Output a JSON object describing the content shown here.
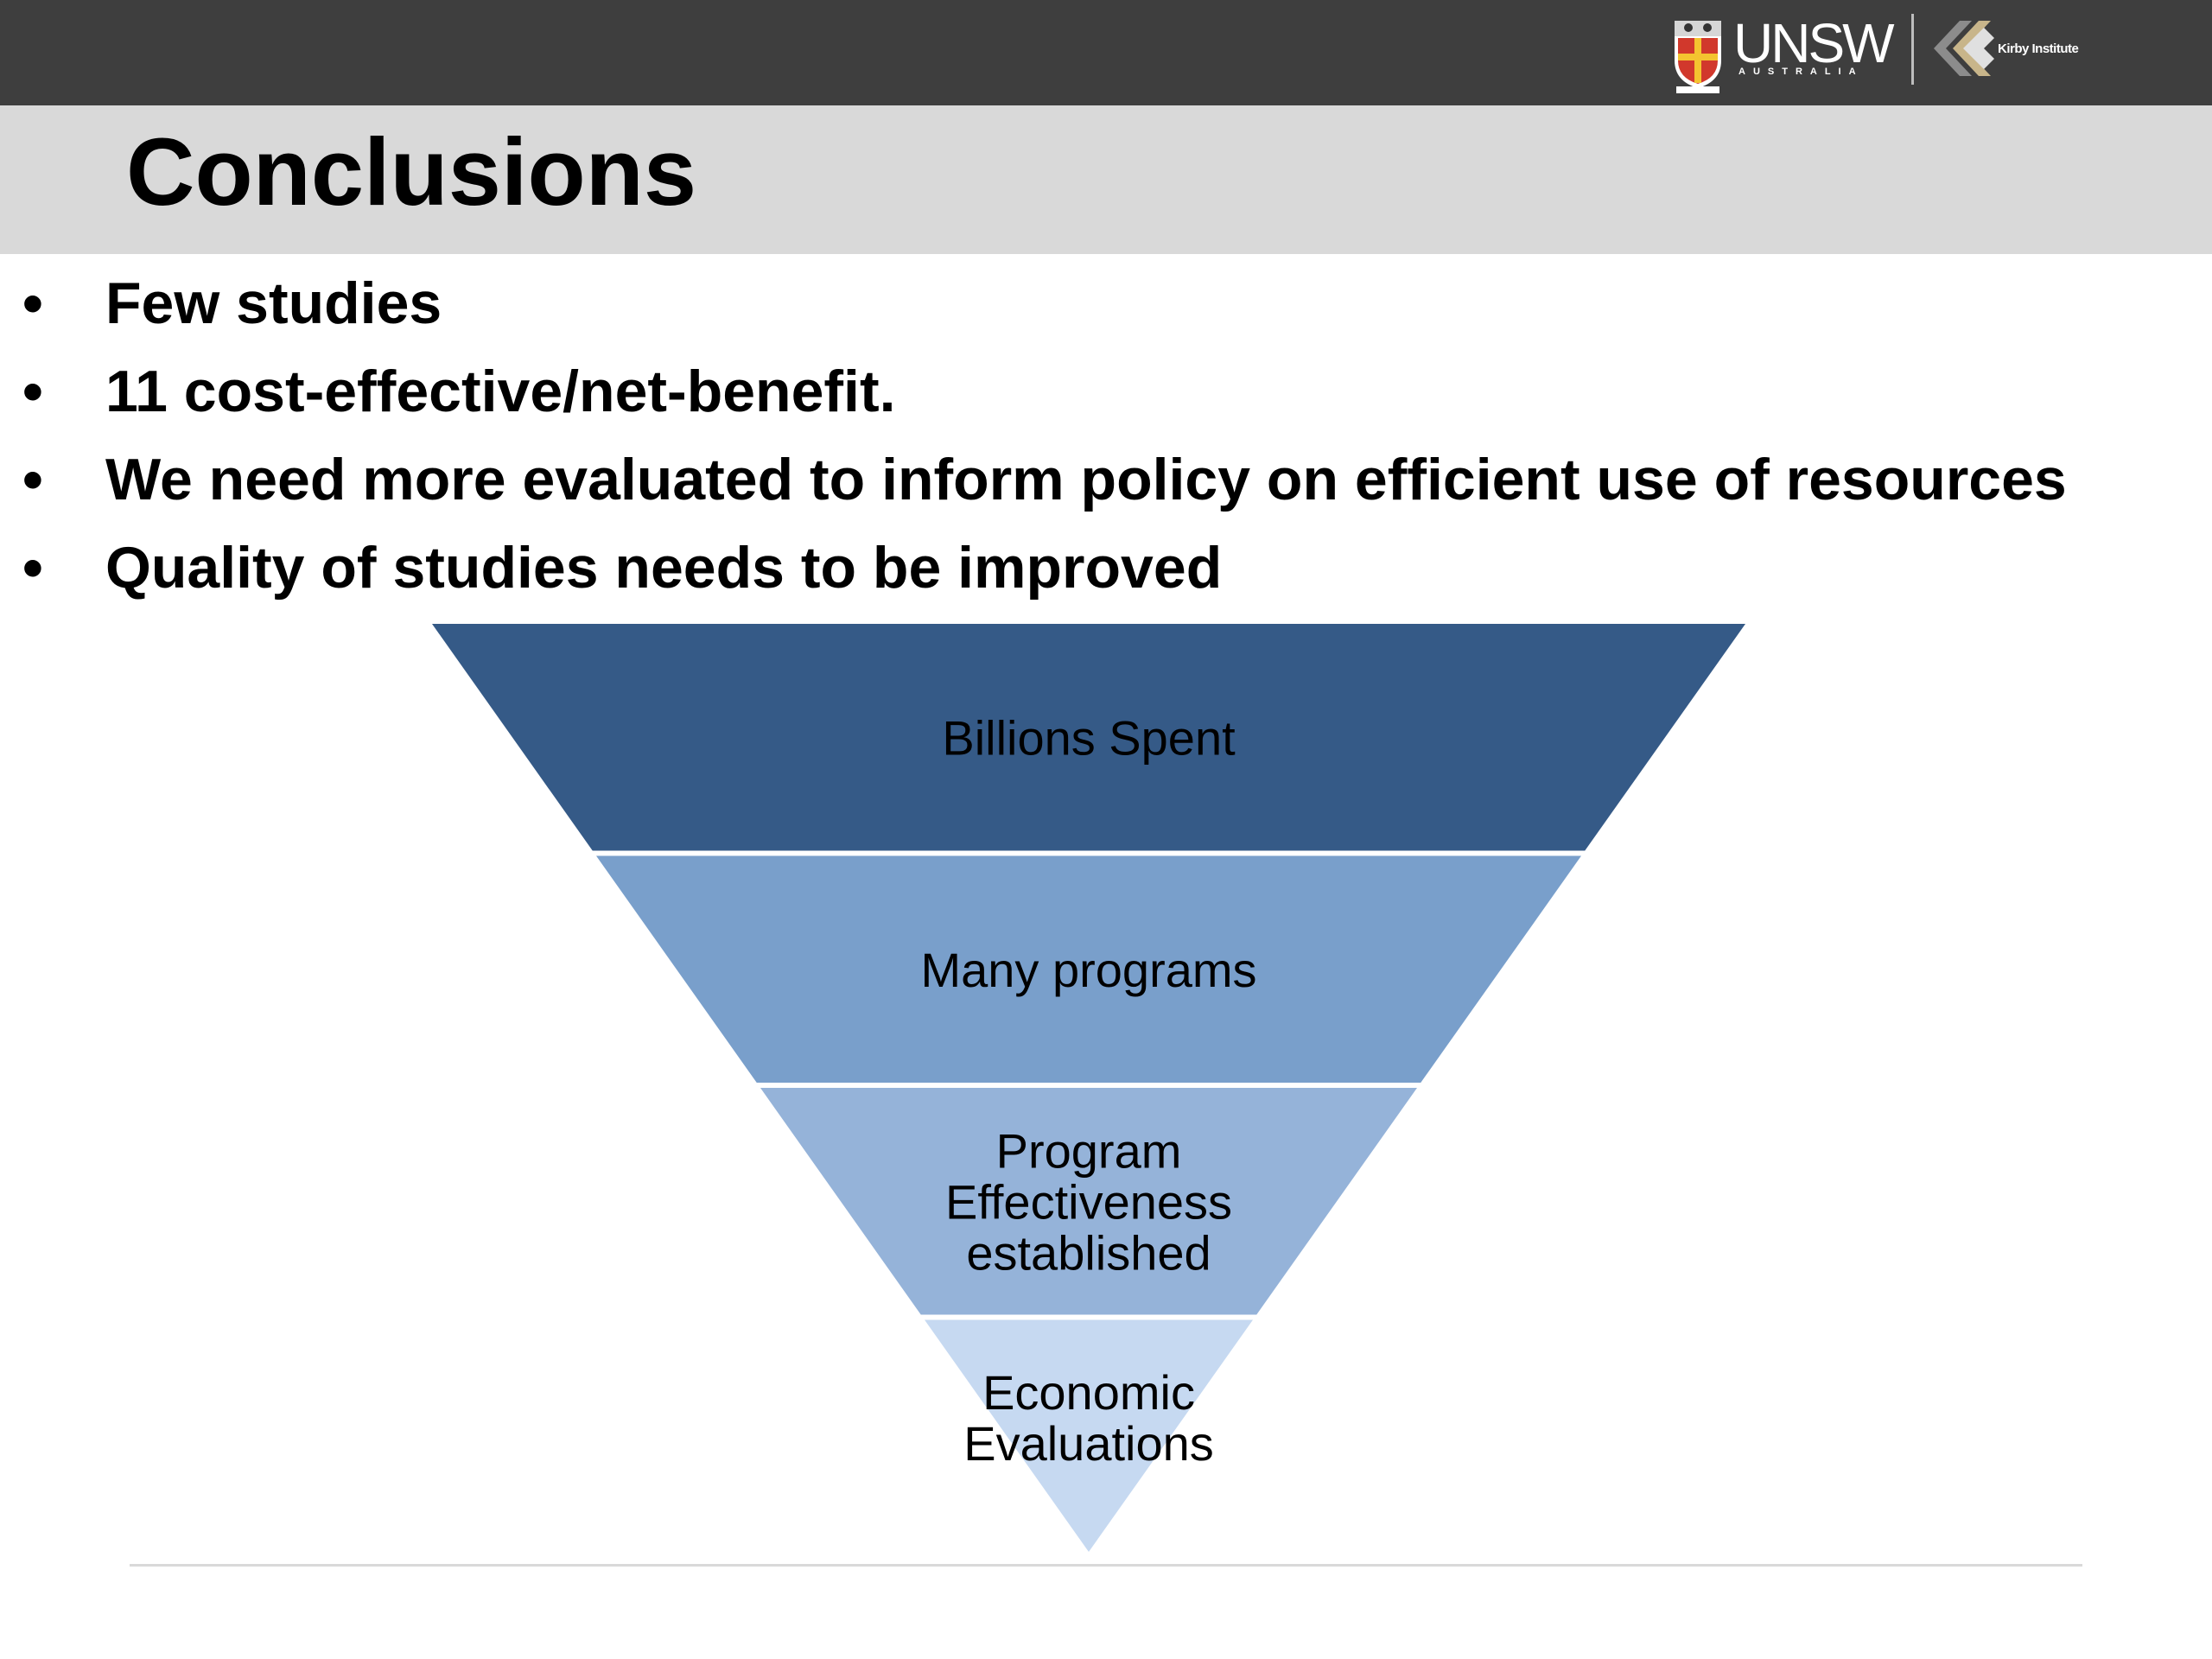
{
  "header": {
    "logo_unsw": "UNSW",
    "logo_unsw_sub": "AUSTRALIA",
    "logo_kirby": "Kirby Institute",
    "colors": {
      "bar": "#3e3e3e",
      "title_band": "#d9d9d9"
    }
  },
  "title": "Conclusions",
  "bullets": [
    {
      "marker": "•",
      "text": "Few studies"
    },
    {
      "marker": "•",
      "text": "11 cost-effective/net-benefit."
    },
    {
      "marker": "•",
      "text": "We need more evaluated to inform policy on efficient use of resources"
    },
    {
      "marker": "•",
      "text": "Quality of studies needs to be improved"
    }
  ],
  "funnel": {
    "levels": [
      {
        "lines": [
          "Billions Spent"
        ],
        "color": "#355a87"
      },
      {
        "lines": [
          "Many programs"
        ],
        "color": "#799fcb"
      },
      {
        "lines": [
          "Program",
          "Effectiveness",
          "established"
        ],
        "color": "#95b3d9"
      },
      {
        "lines": [
          "Economic",
          "Evaluations"
        ],
        "color": "#c6d9f1"
      }
    ]
  }
}
